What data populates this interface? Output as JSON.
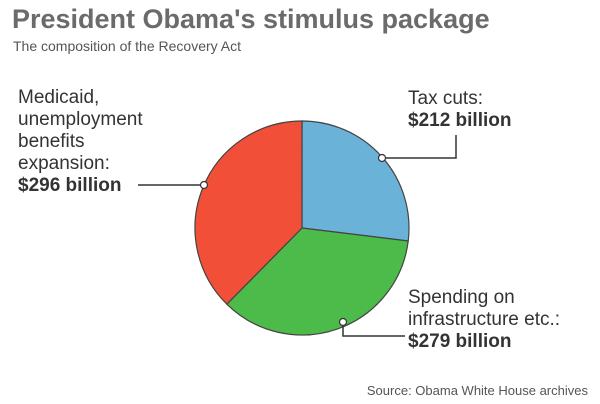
{
  "chart_data": {
    "type": "pie",
    "title": "President Obama's stimulus package",
    "subtitle": "The composition of the Recovery Act",
    "source": "Source: Obama White House archives",
    "categories": [
      "Tax cuts:",
      "Spending on infrastructure etc.:",
      "Medicaid, unemployment benefits expansion:"
    ],
    "values": [
      212,
      279,
      296
    ],
    "value_labels": [
      "$212 billion",
      "$279 billion",
      "$296 billion"
    ],
    "colors": [
      "#6ab2d8",
      "#4dbb4a",
      "#f24f38"
    ]
  }
}
